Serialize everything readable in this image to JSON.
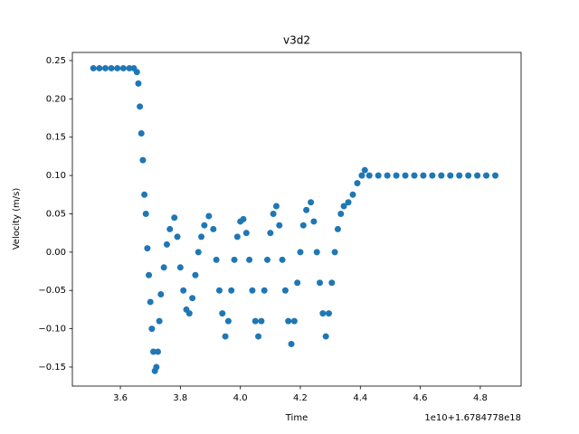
{
  "chart_data": {
    "type": "scatter",
    "title": "v3d2",
    "x_label": "Time",
    "y_label": "Velocity (m/s)",
    "x_offset_label": "1e10+1.6784778e18",
    "xlim": [
      3.44,
      4.936
    ],
    "ylim": [
      -0.1748,
      0.2606
    ],
    "xticks": [
      3.6,
      3.8,
      {
        "value": 4.0,
        "label": "4.0"
      },
      4.2,
      4.4,
      4.6,
      4.8
    ],
    "yticks": [
      {
        "value": -0.15,
        "label": "−0.15"
      },
      {
        "value": -0.1,
        "label": "−0.10"
      },
      {
        "value": -0.05,
        "label": "−0.05"
      },
      {
        "value": 0,
        "label": "0.00"
      },
      {
        "value": 0.05,
        "label": "0.05"
      },
      {
        "value": 0.1,
        "label": "0.10"
      },
      {
        "value": 0.15,
        "label": "0.15"
      },
      {
        "value": 0.2,
        "label": "0.20"
      },
      {
        "value": 0.25,
        "label": "0.25"
      }
    ],
    "color": "#1f77b4",
    "x": [
      3.51,
      3.53,
      3.55,
      3.57,
      3.59,
      3.61,
      3.63,
      3.645,
      3.655,
      3.66,
      3.665,
      3.67,
      3.675,
      3.68,
      3.685,
      3.69,
      3.695,
      3.7,
      3.705,
      3.71,
      3.715,
      3.72,
      3.725,
      3.73,
      3.735,
      3.745,
      3.755,
      3.765,
      3.78,
      3.79,
      3.8,
      3.81,
      3.82,
      3.83,
      3.84,
      3.85,
      3.86,
      3.87,
      3.88,
      3.895,
      3.91,
      3.92,
      3.93,
      3.94,
      3.95,
      3.96,
      3.97,
      3.98,
      3.99,
      4.0,
      4.01,
      4.02,
      4.03,
      4.04,
      4.05,
      4.06,
      4.07,
      4.08,
      4.09,
      4.1,
      4.11,
      4.12,
      4.13,
      4.14,
      4.15,
      4.16,
      4.17,
      4.18,
      4.19,
      4.2,
      4.21,
      4.22,
      4.235,
      4.245,
      4.255,
      4.265,
      4.275,
      4.285,
      4.295,
      4.305,
      4.315,
      4.325,
      4.335,
      4.345,
      4.36,
      4.375,
      4.39,
      4.405,
      4.415,
      4.43,
      4.46,
      4.49,
      4.52,
      4.55,
      4.58,
      4.61,
      4.64,
      4.67,
      4.7,
      4.73,
      4.76,
      4.79,
      4.82,
      4.85
    ],
    "values": [
      0.24,
      0.24,
      0.24,
      0.24,
      0.24,
      0.24,
      0.24,
      0.24,
      0.235,
      0.22,
      0.19,
      0.155,
      0.12,
      0.075,
      0.05,
      0.005,
      -0.03,
      -0.065,
      -0.1,
      -0.13,
      -0.155,
      -0.15,
      -0.13,
      -0.09,
      -0.055,
      -0.02,
      0.01,
      0.03,
      0.045,
      0.02,
      -0.02,
      -0.05,
      -0.075,
      -0.08,
      -0.06,
      -0.03,
      0.0,
      0.02,
      0.035,
      0.047,
      0.03,
      -0.01,
      -0.05,
      -0.08,
      -0.11,
      -0.09,
      -0.05,
      -0.01,
      0.02,
      0.04,
      0.043,
      0.025,
      -0.01,
      -0.05,
      -0.09,
      -0.11,
      -0.09,
      -0.05,
      -0.01,
      0.025,
      0.05,
      0.06,
      0.035,
      -0.01,
      -0.05,
      -0.09,
      -0.12,
      -0.09,
      -0.04,
      0.0,
      0.035,
      0.055,
      0.065,
      0.04,
      0.0,
      -0.04,
      -0.08,
      -0.11,
      -0.08,
      -0.04,
      0.0,
      0.03,
      0.05,
      0.06,
      0.065,
      0.075,
      0.09,
      0.1,
      0.107,
      0.1,
      0.1,
      0.1,
      0.1,
      0.1,
      0.1,
      0.1,
      0.1,
      0.1,
      0.1,
      0.1,
      0.1,
      0.1,
      0.1,
      0.1
    ]
  }
}
